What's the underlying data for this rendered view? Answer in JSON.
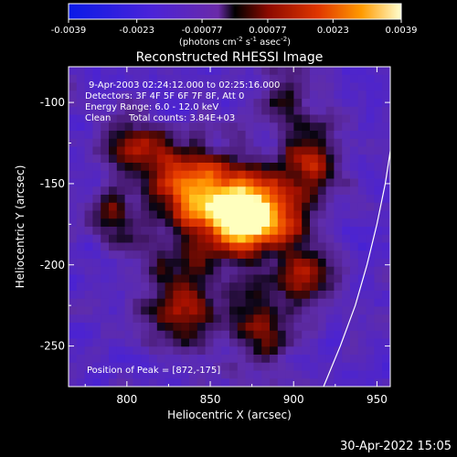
{
  "chart_data": {
    "type": "heatmap",
    "title": "Reconstructed RHESSI Image",
    "xlabel": "Heliocentric X (arcsec)",
    "ylabel": "Heliocentric Y (arcsec)",
    "xlim": [
      765,
      958
    ],
    "ylim": [
      -275,
      -78
    ],
    "x_ticks": [
      800,
      850,
      900,
      950
    ],
    "y_ticks": [
      -100,
      -150,
      -200,
      -250
    ],
    "colorbar": {
      "range": [
        -0.0039,
        0.0039
      ],
      "ticks": [
        -0.0039,
        -0.0023,
        -0.00077,
        0.00077,
        0.0023,
        0.0039
      ],
      "tick_labels": [
        "-0.0039",
        "-0.0023",
        "-0.00077",
        "0.00077",
        "0.0023",
        "0.0039"
      ],
      "unit_prefix": "(photons cm",
      "unit_exp1": "-2",
      "unit_mid": " s",
      "unit_exp2": "-1",
      "unit_mid2": " asec",
      "unit_exp3": "-2",
      "unit_suffix": ")"
    },
    "annotations": {
      "time": "9-Apr-2003 02:24:12.000 to 02:25:16.000",
      "detectors": "Detectors: 3F 4F 5F 6F 7F 8F, Att 0",
      "energy": "Energy Range: 6.0 - 12.0 keV",
      "clean": "Clean",
      "counts": "Total counts: 3.84E+03",
      "peak": "Position of Peak = [872,-175]"
    },
    "peak": [
      872,
      -175
    ],
    "limb_curve": [
      [
        918,
        -275
      ],
      [
        928,
        -250
      ],
      [
        937,
        -225
      ],
      [
        944,
        -200
      ],
      [
        950,
        -175
      ],
      [
        955,
        -150
      ],
      [
        958,
        -130
      ]
    ],
    "emission_sources": [
      {
        "x": 872,
        "y": -172,
        "amp": 1.25,
        "s": 12
      },
      {
        "x": 858,
        "y": -160,
        "amp": 0.7,
        "s": 18
      },
      {
        "x": 835,
        "y": -150,
        "amp": 0.55,
        "s": 16
      },
      {
        "x": 808,
        "y": -128,
        "amp": 0.6,
        "s": 13
      },
      {
        "x": 790,
        "y": -170,
        "amp": 0.5,
        "s": 11
      },
      {
        "x": 830,
        "y": -230,
        "amp": 0.55,
        "s": 15
      },
      {
        "x": 880,
        "y": -240,
        "amp": 0.5,
        "s": 16
      },
      {
        "x": 905,
        "y": -205,
        "amp": 0.6,
        "s": 13
      },
      {
        "x": 910,
        "y": -135,
        "amp": 0.6,
        "s": 14
      },
      {
        "x": 895,
        "y": -165,
        "amp": 0.55,
        "s": 14
      },
      {
        "x": 838,
        "y": -195,
        "amp": 0.35,
        "s": 20
      },
      {
        "x": 895,
        "y": -100,
        "amp": 0.3,
        "s": 14
      }
    ]
  },
  "footer": {
    "timestamp": "30-Apr-2022 15:05"
  }
}
